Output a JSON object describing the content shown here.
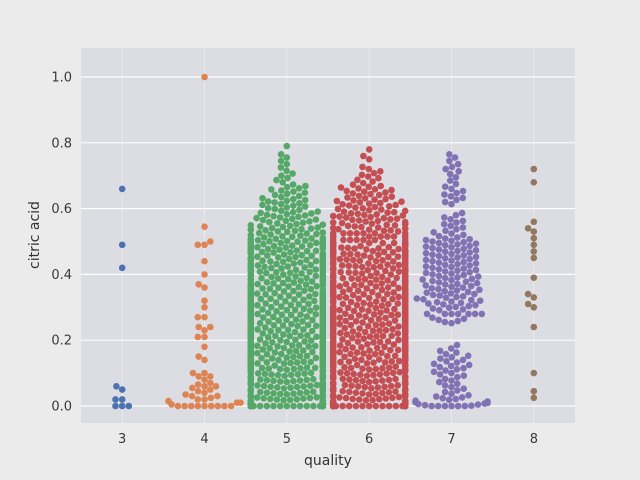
{
  "figure": {
    "background": "#ebebeb",
    "axes_background": "#dcdce3",
    "grid_color": "#ffffff",
    "tick_color": "#3a3a3a",
    "label_color": "#333333"
  },
  "chart_data": {
    "type": "scatter",
    "variant": "swarm",
    "title": "",
    "xlabel": "quality",
    "ylabel": "citric acid",
    "categories": [
      "3",
      "4",
      "5",
      "6",
      "7",
      "8"
    ],
    "ytick_labels": [
      "0.0",
      "0.2",
      "0.4",
      "0.6",
      "0.8",
      "1.0"
    ],
    "yticks": [
      0.0,
      0.2,
      0.4,
      0.6,
      0.8,
      1.0
    ],
    "ylim": [
      -0.052,
      1.088
    ],
    "grid": true,
    "legend": false,
    "series": [
      {
        "name": "3",
        "color": "#4C72B0",
        "values": [
          0.66,
          0.49,
          0.42,
          0.06,
          0.05,
          0.02,
          0.02,
          0,
          0,
          0
        ]
      },
      {
        "name": "4",
        "color": "#DD8452",
        "values": [
          1.0,
          0.545,
          0.5,
          0.49,
          0.49,
          0.44,
          0.4,
          0.37,
          0.36,
          0.32,
          0.3,
          0.27,
          0.27,
          0.24,
          0.24,
          0.23,
          0.21,
          0.21,
          0.18,
          0.15,
          0.14,
          0.1,
          0.1,
          0.09,
          0.09,
          0.08,
          0.07,
          0.065,
          0.06,
          0.06,
          0.055,
          0.05,
          0.045,
          0.04,
          0.035,
          0.03,
          0.03,
          0.025,
          0.02,
          0.02,
          0.015,
          0.01,
          0.01,
          0.005,
          0,
          0,
          0,
          0,
          0,
          0,
          0,
          0,
          0
        ]
      },
      {
        "name": "5",
        "color": "#55A868",
        "bins": [
          [
            0.0,
            55
          ],
          [
            0.02,
            20
          ],
          [
            0.04,
            20
          ],
          [
            0.06,
            20
          ],
          [
            0.08,
            20
          ],
          [
            0.1,
            20
          ],
          [
            0.12,
            24
          ],
          [
            0.14,
            24
          ],
          [
            0.16,
            24
          ],
          [
            0.18,
            24
          ],
          [
            0.2,
            24
          ],
          [
            0.22,
            24
          ],
          [
            0.24,
            24
          ],
          [
            0.26,
            24
          ],
          [
            0.28,
            24
          ],
          [
            0.3,
            24
          ],
          [
            0.32,
            18
          ],
          [
            0.34,
            18
          ],
          [
            0.36,
            18
          ],
          [
            0.38,
            18
          ],
          [
            0.4,
            18
          ],
          [
            0.42,
            18
          ],
          [
            0.44,
            18
          ],
          [
            0.46,
            18
          ],
          [
            0.48,
            18
          ],
          [
            0.5,
            18
          ],
          [
            0.52,
            12
          ],
          [
            0.54,
            12
          ],
          [
            0.56,
            10
          ],
          [
            0.58,
            10
          ],
          [
            0.6,
            8
          ],
          [
            0.62,
            8
          ],
          [
            0.64,
            6
          ],
          [
            0.66,
            6
          ],
          [
            0.68,
            3
          ],
          [
            0.7,
            3
          ],
          [
            0.72,
            2
          ],
          [
            0.74,
            2
          ],
          [
            0.76,
            2
          ],
          [
            0.79,
            1
          ]
        ]
      },
      {
        "name": "6",
        "color": "#C44E52",
        "bins": [
          [
            0.0,
            50
          ],
          [
            0.02,
            18
          ],
          [
            0.04,
            18
          ],
          [
            0.06,
            18
          ],
          [
            0.08,
            18
          ],
          [
            0.1,
            18
          ],
          [
            0.12,
            20
          ],
          [
            0.14,
            20
          ],
          [
            0.16,
            20
          ],
          [
            0.18,
            20
          ],
          [
            0.2,
            20
          ],
          [
            0.22,
            20
          ],
          [
            0.24,
            20
          ],
          [
            0.26,
            20
          ],
          [
            0.28,
            20
          ],
          [
            0.3,
            20
          ],
          [
            0.32,
            18
          ],
          [
            0.34,
            18
          ],
          [
            0.36,
            18
          ],
          [
            0.38,
            18
          ],
          [
            0.4,
            18
          ],
          [
            0.42,
            18
          ],
          [
            0.44,
            18
          ],
          [
            0.46,
            18
          ],
          [
            0.48,
            18
          ],
          [
            0.5,
            14
          ],
          [
            0.52,
            14
          ],
          [
            0.54,
            12
          ],
          [
            0.56,
            12
          ],
          [
            0.58,
            12
          ],
          [
            0.6,
            10
          ],
          [
            0.62,
            10
          ],
          [
            0.64,
            8
          ],
          [
            0.66,
            8
          ],
          [
            0.68,
            4
          ],
          [
            0.7,
            4
          ],
          [
            0.72,
            3
          ],
          [
            0.75,
            1
          ],
          [
            0.76,
            1
          ],
          [
            0.78,
            1
          ]
        ]
      },
      {
        "name": "7",
        "color": "#8172B3",
        "bins": [
          [
            0.0,
            12
          ],
          [
            0.02,
            8
          ],
          [
            0.04,
            4
          ],
          [
            0.06,
            4
          ],
          [
            0.08,
            4
          ],
          [
            0.1,
            5
          ],
          [
            0.12,
            6
          ],
          [
            0.14,
            5
          ],
          [
            0.16,
            4
          ],
          [
            0.18,
            2
          ],
          [
            0.26,
            6
          ],
          [
            0.28,
            7
          ],
          [
            0.3,
            8
          ],
          [
            0.32,
            9
          ],
          [
            0.34,
            9
          ],
          [
            0.36,
            9
          ],
          [
            0.38,
            9
          ],
          [
            0.4,
            9
          ],
          [
            0.42,
            9
          ],
          [
            0.44,
            9
          ],
          [
            0.46,
            9
          ],
          [
            0.48,
            9
          ],
          [
            0.5,
            9
          ],
          [
            0.52,
            5
          ],
          [
            0.54,
            4
          ],
          [
            0.56,
            4
          ],
          [
            0.58,
            3
          ],
          [
            0.62,
            3
          ],
          [
            0.64,
            4
          ],
          [
            0.66,
            3
          ],
          [
            0.68,
            2
          ],
          [
            0.7,
            2
          ],
          [
            0.72,
            3
          ],
          [
            0.74,
            2
          ],
          [
            0.76,
            2
          ]
        ]
      },
      {
        "name": "8",
        "color": "#937860",
        "values": [
          0.72,
          0.68,
          0.56,
          0.54,
          0.53,
          0.51,
          0.49,
          0.47,
          0.45,
          0.39,
          0.34,
          0.33,
          0.31,
          0.3,
          0.24,
          0.1,
          0.045,
          0.025
        ]
      }
    ]
  }
}
